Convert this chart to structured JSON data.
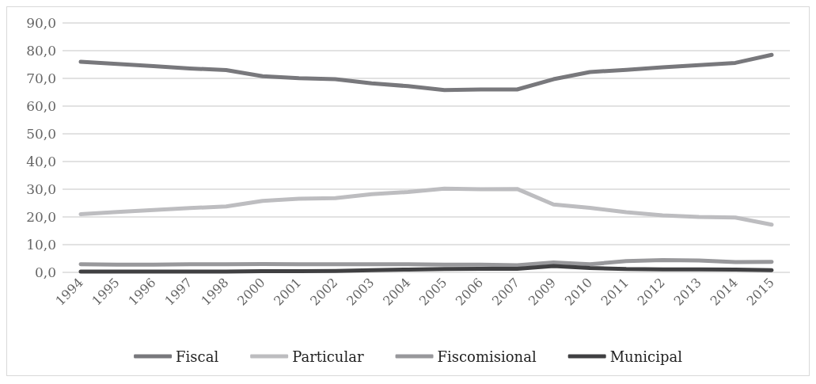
{
  "chart_data": {
    "type": "line",
    "categories": [
      "1994",
      "1995",
      "1996",
      "1997",
      "1998",
      "2000",
      "2001",
      "2002",
      "2003",
      "2004",
      "2005",
      "2006",
      "2007",
      "2009",
      "2010",
      "2011",
      "2012",
      "2013",
      "2014",
      "2015"
    ],
    "series": [
      {
        "name": "Fiscal",
        "color": "#78787c",
        "values": [
          76,
          75.2,
          74.4,
          73.6,
          73,
          70.8,
          70.1,
          69.7,
          68.2,
          67.2,
          65.8,
          66,
          66,
          69.7,
          72.3,
          73.1,
          74,
          74.8,
          75.6,
          78.5
        ]
      },
      {
        "name": "Particular",
        "color": "#bdbdc0",
        "values": [
          21,
          21.8,
          22.5,
          23.2,
          23.8,
          25.8,
          26.6,
          26.8,
          28.2,
          29,
          30.2,
          30,
          30.1,
          24.5,
          23.3,
          21.7,
          20.6,
          20,
          19.8,
          17.2
        ]
      },
      {
        "name": "Fiscomisional",
        "color": "#98989b",
        "values": [
          2.9,
          2.8,
          2.8,
          2.9,
          2.9,
          3,
          2.9,
          2.9,
          2.9,
          2.9,
          2.8,
          2.8,
          2.6,
          3.6,
          2.9,
          4.1,
          4.4,
          4.3,
          3.7,
          3.8
        ]
      },
      {
        "name": "Municipal",
        "color": "#404042",
        "values": [
          0.3,
          0.3,
          0.3,
          0.3,
          0.3,
          0.4,
          0.4,
          0.5,
          0.8,
          1,
          1.2,
          1.3,
          1.3,
          2.3,
          1.6,
          1.2,
          1.1,
          1.1,
          1,
          0.8
        ]
      }
    ],
    "ylim": [
      0,
      90
    ],
    "yticks": [
      {
        "value": 0,
        "label": "0,0"
      },
      {
        "value": 10,
        "label": "10,0"
      },
      {
        "value": 20,
        "label": "20,0"
      },
      {
        "value": 30,
        "label": "30,0"
      },
      {
        "value": 40,
        "label": "40,0"
      },
      {
        "value": 50,
        "label": "50,0"
      },
      {
        "value": 60,
        "label": "60,0"
      },
      {
        "value": 70,
        "label": "70,0"
      },
      {
        "value": 80,
        "label": "80,0"
      },
      {
        "value": 90,
        "label": "90,0"
      }
    ],
    "grid": "y",
    "legend": "bottom",
    "marker": "none",
    "line_style": "solid"
  }
}
